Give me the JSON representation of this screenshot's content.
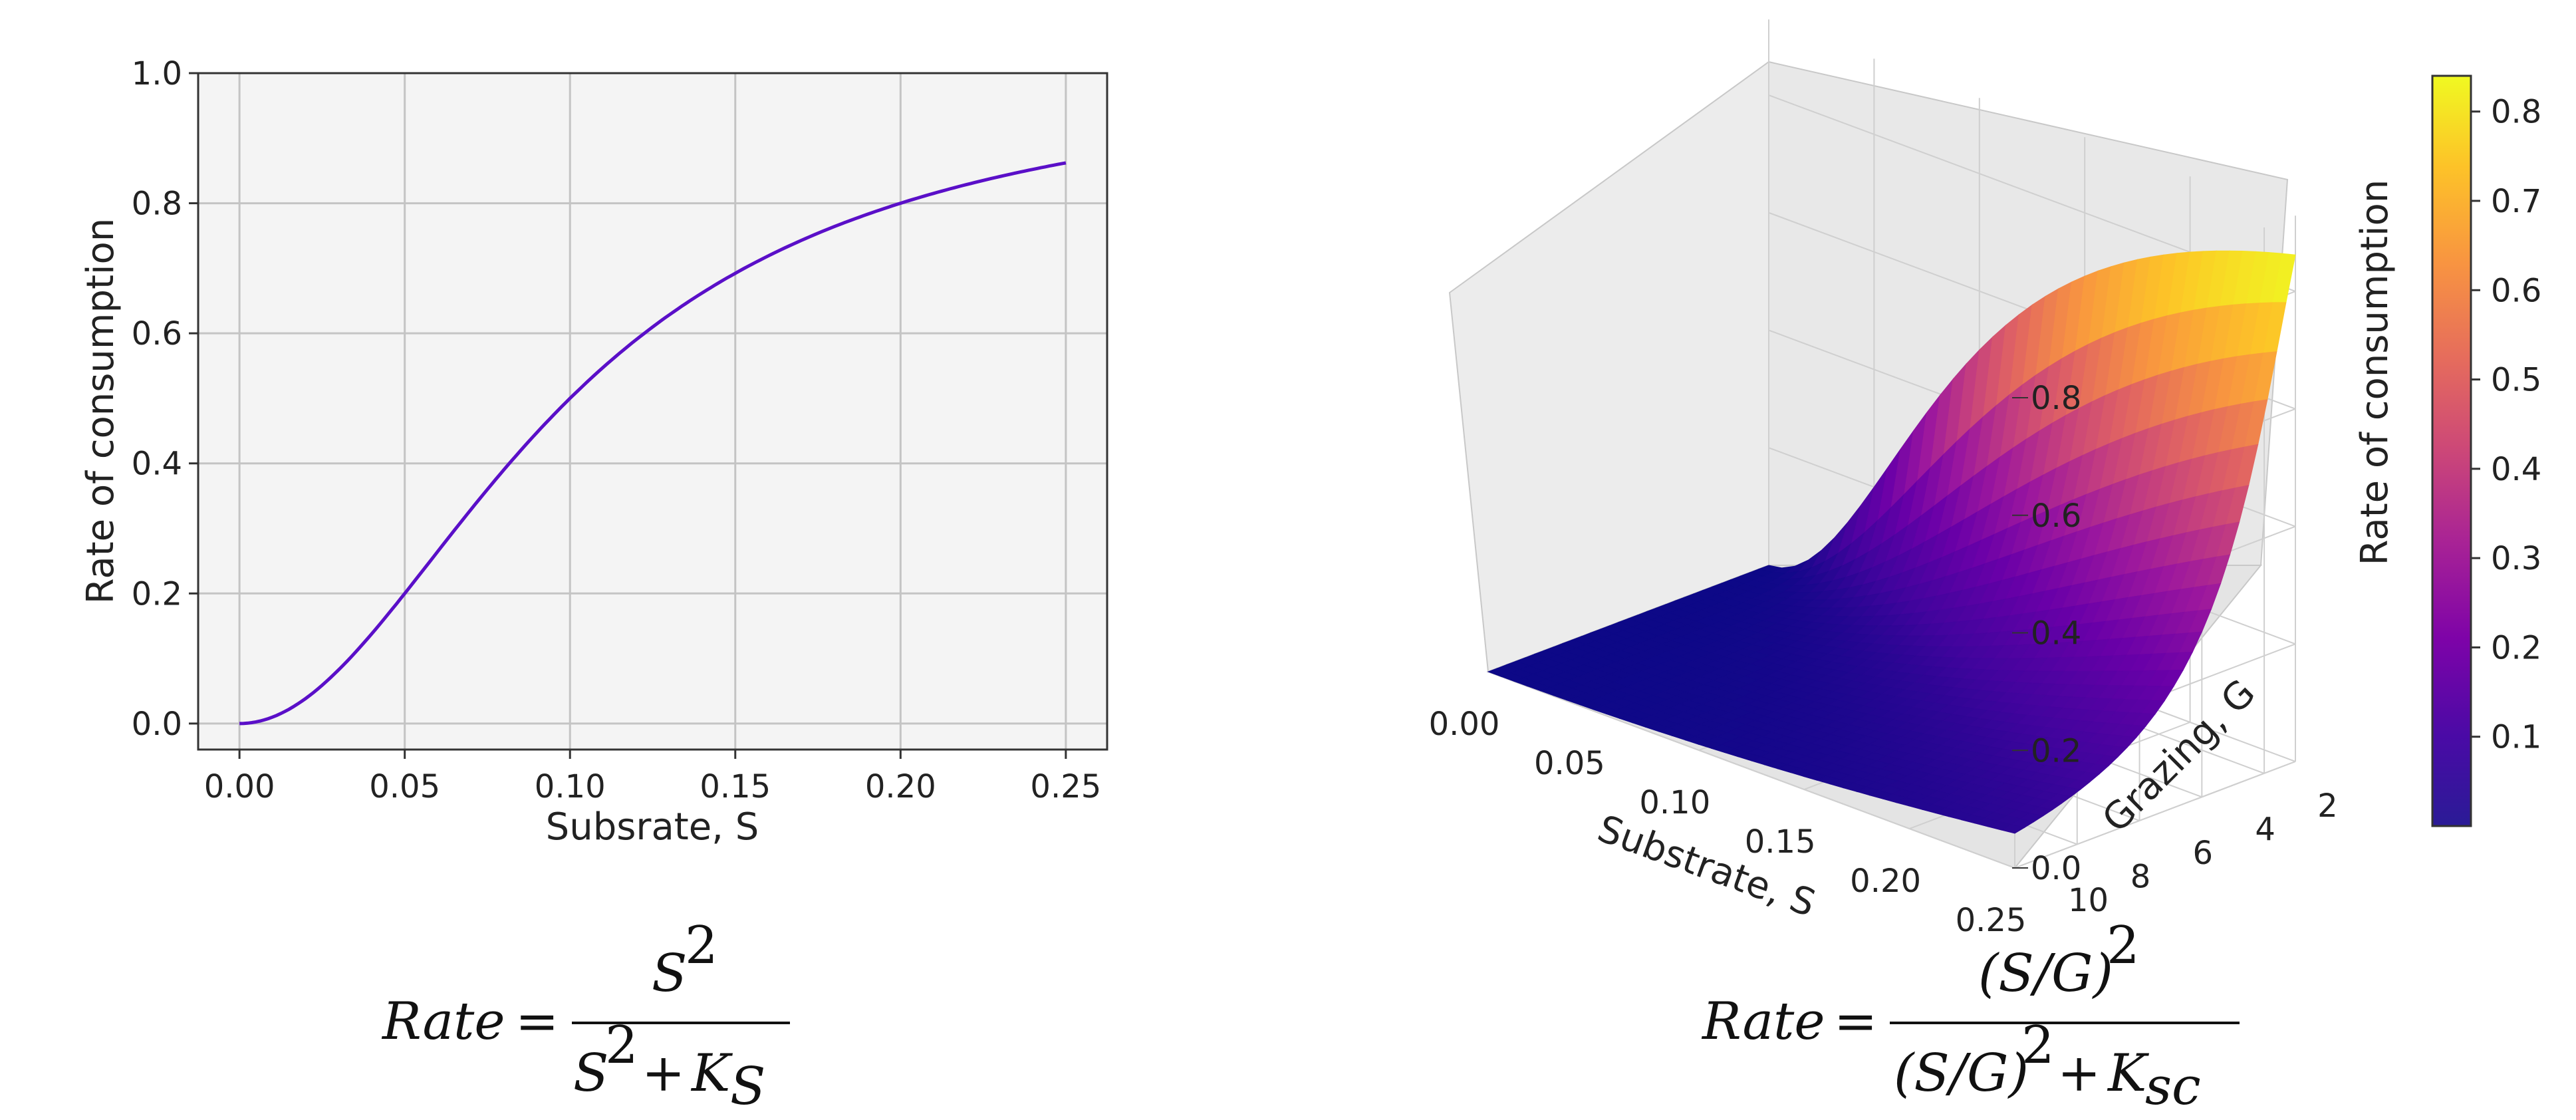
{
  "chart_data": [
    {
      "type": "line",
      "title": "",
      "xlabel": "Subsrate, S",
      "ylabel": "Rate of consumption",
      "xlim": [
        -0.0125,
        0.2625
      ],
      "ylim": [
        -0.04,
        1.0
      ],
      "xticks": [
        0.0,
        0.05,
        0.1,
        0.15,
        0.2,
        0.25
      ],
      "xtick_labels": [
        "0.00",
        "0.05",
        "0.10",
        "0.15",
        "0.20",
        "0.25"
      ],
      "yticks": [
        0.0,
        0.2,
        0.4,
        0.6,
        0.8,
        1.0
      ],
      "ytick_labels": [
        "0.0",
        "0.2",
        "0.4",
        "0.6",
        "0.8",
        "1.0"
      ],
      "grid": true,
      "ks": 0.01,
      "series": [
        {
          "name": "Rate",
          "color": "#5a0fc8",
          "x": [
            0.0,
            0.0125,
            0.025,
            0.0375,
            0.05,
            0.0625,
            0.075,
            0.0875,
            0.1,
            0.1125,
            0.125,
            0.1375,
            0.15,
            0.1625,
            0.175,
            0.1875,
            0.2,
            0.2125,
            0.225,
            0.2375,
            0.25
          ],
          "y": [
            0.0,
            0.015,
            0.059,
            0.123,
            0.2,
            0.281,
            0.36,
            0.434,
            0.5,
            0.559,
            0.61,
            0.654,
            0.692,
            0.725,
            0.754,
            0.779,
            0.8,
            0.819,
            0.835,
            0.849,
            0.862
          ]
        }
      ],
      "equation": {
        "lhs": "Rate",
        "eq": "=",
        "num": "S",
        "num_exp": "2",
        "den": "S",
        "den_exp": "2",
        "den_plus": "+",
        "den_k": "K",
        "den_k_sub": "S"
      }
    },
    {
      "type": "surface3d",
      "title": "",
      "xlabel": "Substrate, S",
      "ylabel": "Grazing, G",
      "zlabel": "Rate of consumption",
      "xticks": [
        0.0,
        0.05,
        0.1,
        0.15,
        0.2,
        0.25
      ],
      "xtick_labels": [
        "0.00",
        "0.05",
        "0.10",
        "0.15",
        "0.20",
        "0.25"
      ],
      "yticks": [
        2,
        4,
        6,
        8,
        10
      ],
      "ytick_labels": [
        "2",
        "4",
        "6",
        "8",
        "10"
      ],
      "zticks": [
        0.0,
        0.2,
        0.4,
        0.6,
        0.8
      ],
      "ztick_labels": [
        "0.0",
        "0.2",
        "0.4",
        "0.6",
        "0.8"
      ],
      "xlim": [
        0.0,
        0.25
      ],
      "ylim": [
        1,
        10
      ],
      "zlim": [
        0.0,
        0.86
      ],
      "ksc": 0.01,
      "colormap": "plasma",
      "colorbar": {
        "ticks": [
          0.1,
          0.2,
          0.3,
          0.4,
          0.5,
          0.6,
          0.7,
          0.8
        ],
        "tick_labels": [
          "0.1",
          "0.2",
          "0.3",
          "0.4",
          "0.5",
          "0.6",
          "0.7",
          "0.8"
        ],
        "range": [
          0.0,
          0.84
        ]
      },
      "equation": {
        "lhs": "Rate",
        "eq": "=",
        "num": "(S/G)",
        "num_exp": "2",
        "den": "(S/G)",
        "den_exp": "2",
        "den_plus": "+",
        "den_k": "K",
        "den_k_sub": "sc"
      }
    }
  ]
}
